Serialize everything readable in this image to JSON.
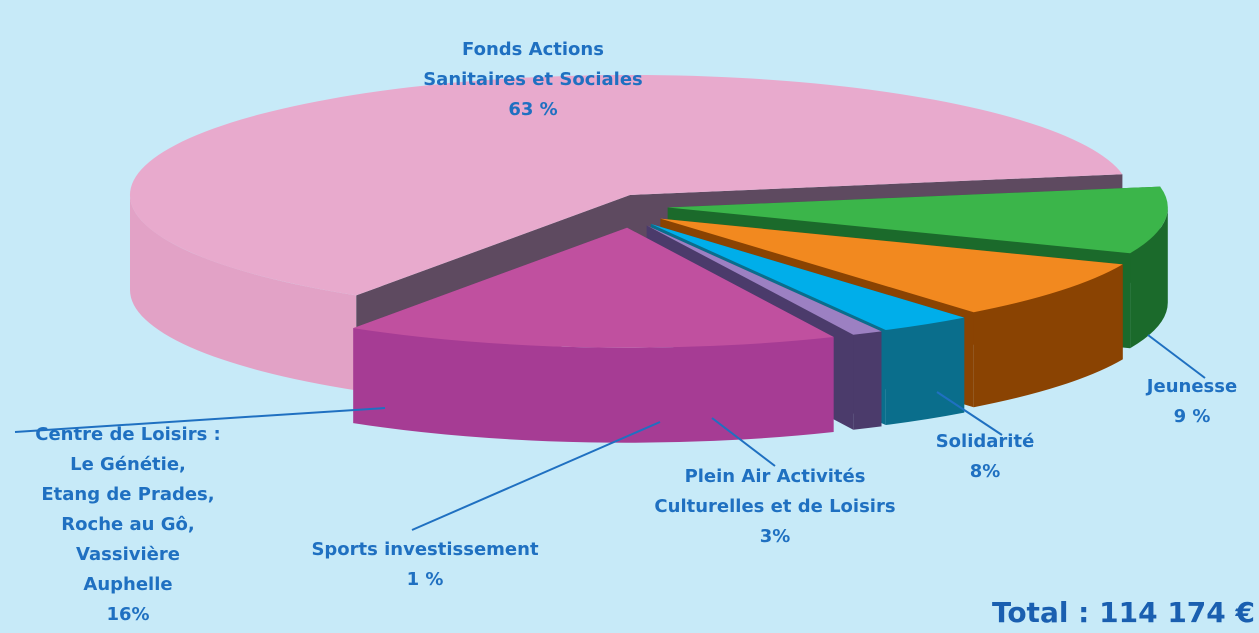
{
  "chart_data": {
    "type": "pie3d",
    "categories": [
      [
        "Jeunesse"
      ],
      [
        "Solidarité"
      ],
      [
        "Plein Air Activités",
        "Culturelles et de Loisirs"
      ],
      [
        "Sports investissement"
      ],
      [
        "Centre de Loisirs :",
        "Le Génétie,",
        "Etang de Prades,",
        "Roche au Gô,",
        "Vassivière",
        "Auphelle"
      ],
      [
        "Fonds Actions",
        "Sanitaires et Sociales"
      ]
    ],
    "values": [
      9,
      8,
      3,
      1,
      16,
      63
    ],
    "value_labels": [
      "9 %",
      "8%",
      "3%",
      "1 %",
      "16%",
      "63 %"
    ],
    "colors": [
      "#3bb54a",
      "#f2891f",
      "#00aeea",
      "#9c80c2",
      "#c0509f",
      "#e8aacd"
    ],
    "side_colors": [
      "#1b6a2b",
      "#8a4302",
      "#0a6e8c",
      "#4b3b6b",
      "#a63c94",
      "#e2a2c6"
    ],
    "annotation": "Total : 114 174 €"
  }
}
